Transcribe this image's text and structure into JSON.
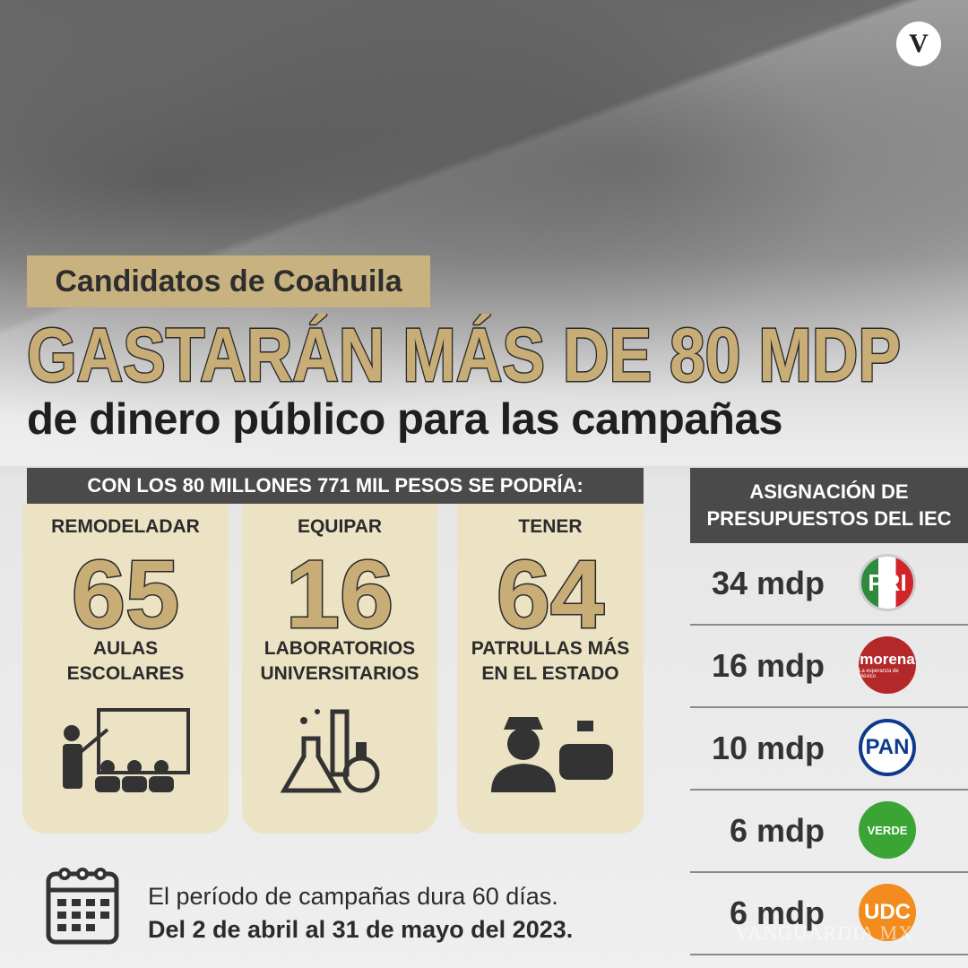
{
  "logo": "V",
  "header": {
    "kicker": "Candidatos de Coahuila",
    "headline": "GASTARÁN MÁS DE 80 MDP",
    "subhead": "de dinero público para las campañas"
  },
  "uses": {
    "title": "CON LOS 80 MILLONES 771 MIL PESOS SE PODRÍA:",
    "cards": [
      {
        "verb": "REMODELADAR",
        "number": 65,
        "lines": [
          "AULAS",
          "ESCOLARES"
        ]
      },
      {
        "verb": "EQUIPAR",
        "number": 16,
        "lines": [
          "LABORATORIOS",
          "UNIVERSITARIOS"
        ]
      },
      {
        "verb": "TENER",
        "number": 64,
        "lines": [
          "PATRULLAS MÁS",
          "EN EL ESTADO"
        ]
      }
    ]
  },
  "budget": {
    "title": [
      "ASIGNACIÓN DE",
      "PRESUPUESTOS DEL IEC"
    ],
    "rows": [
      {
        "amount": "34 mdp",
        "party": "PRI"
      },
      {
        "amount": "16 mdp",
        "party": "morena",
        "tagline": "La esperanza de México"
      },
      {
        "amount": "10 mdp",
        "party": "PAN"
      },
      {
        "amount": "6 mdp",
        "party": "VERDE"
      },
      {
        "amount": "6 mdp",
        "party": "UDC"
      }
    ]
  },
  "footer": {
    "line1": "El período de campañas dura 60 días.",
    "line2": "Del 2 de abril al 31 de mayo del 2023."
  },
  "watermark": "VANGUARDIA MX"
}
